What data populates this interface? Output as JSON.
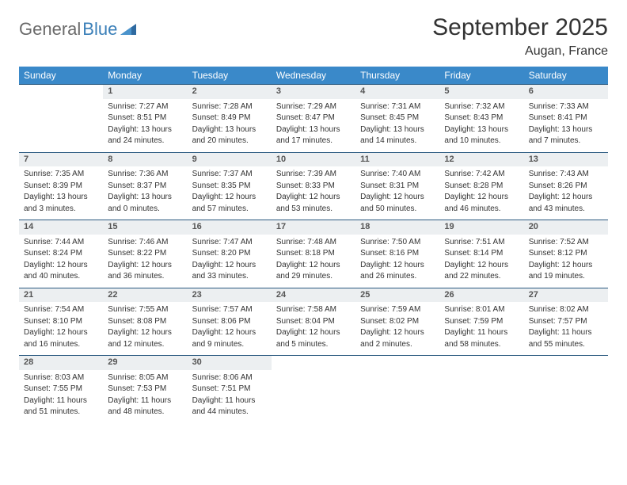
{
  "logo": {
    "part1": "General",
    "part2": "Blue"
  },
  "title": "September 2025",
  "location": "Augan, France",
  "colors": {
    "header_bg": "#3a89c9",
    "header_text": "#ffffff",
    "daynum_bg": "#eceff1",
    "row_border": "#2b5a80",
    "text": "#333333",
    "logo_gray": "#6a6a6a",
    "logo_blue": "#3a7fb8"
  },
  "day_headers": [
    "Sunday",
    "Monday",
    "Tuesday",
    "Wednesday",
    "Thursday",
    "Friday",
    "Saturday"
  ],
  "weeks": [
    [
      null,
      {
        "n": "1",
        "sunrise": "Sunrise: 7:27 AM",
        "sunset": "Sunset: 8:51 PM",
        "d1": "Daylight: 13 hours",
        "d2": "and 24 minutes."
      },
      {
        "n": "2",
        "sunrise": "Sunrise: 7:28 AM",
        "sunset": "Sunset: 8:49 PM",
        "d1": "Daylight: 13 hours",
        "d2": "and 20 minutes."
      },
      {
        "n": "3",
        "sunrise": "Sunrise: 7:29 AM",
        "sunset": "Sunset: 8:47 PM",
        "d1": "Daylight: 13 hours",
        "d2": "and 17 minutes."
      },
      {
        "n": "4",
        "sunrise": "Sunrise: 7:31 AM",
        "sunset": "Sunset: 8:45 PM",
        "d1": "Daylight: 13 hours",
        "d2": "and 14 minutes."
      },
      {
        "n": "5",
        "sunrise": "Sunrise: 7:32 AM",
        "sunset": "Sunset: 8:43 PM",
        "d1": "Daylight: 13 hours",
        "d2": "and 10 minutes."
      },
      {
        "n": "6",
        "sunrise": "Sunrise: 7:33 AM",
        "sunset": "Sunset: 8:41 PM",
        "d1": "Daylight: 13 hours",
        "d2": "and 7 minutes."
      }
    ],
    [
      {
        "n": "7",
        "sunrise": "Sunrise: 7:35 AM",
        "sunset": "Sunset: 8:39 PM",
        "d1": "Daylight: 13 hours",
        "d2": "and 3 minutes."
      },
      {
        "n": "8",
        "sunrise": "Sunrise: 7:36 AM",
        "sunset": "Sunset: 8:37 PM",
        "d1": "Daylight: 13 hours",
        "d2": "and 0 minutes."
      },
      {
        "n": "9",
        "sunrise": "Sunrise: 7:37 AM",
        "sunset": "Sunset: 8:35 PM",
        "d1": "Daylight: 12 hours",
        "d2": "and 57 minutes."
      },
      {
        "n": "10",
        "sunrise": "Sunrise: 7:39 AM",
        "sunset": "Sunset: 8:33 PM",
        "d1": "Daylight: 12 hours",
        "d2": "and 53 minutes."
      },
      {
        "n": "11",
        "sunrise": "Sunrise: 7:40 AM",
        "sunset": "Sunset: 8:31 PM",
        "d1": "Daylight: 12 hours",
        "d2": "and 50 minutes."
      },
      {
        "n": "12",
        "sunrise": "Sunrise: 7:42 AM",
        "sunset": "Sunset: 8:28 PM",
        "d1": "Daylight: 12 hours",
        "d2": "and 46 minutes."
      },
      {
        "n": "13",
        "sunrise": "Sunrise: 7:43 AM",
        "sunset": "Sunset: 8:26 PM",
        "d1": "Daylight: 12 hours",
        "d2": "and 43 minutes."
      }
    ],
    [
      {
        "n": "14",
        "sunrise": "Sunrise: 7:44 AM",
        "sunset": "Sunset: 8:24 PM",
        "d1": "Daylight: 12 hours",
        "d2": "and 40 minutes."
      },
      {
        "n": "15",
        "sunrise": "Sunrise: 7:46 AM",
        "sunset": "Sunset: 8:22 PM",
        "d1": "Daylight: 12 hours",
        "d2": "and 36 minutes."
      },
      {
        "n": "16",
        "sunrise": "Sunrise: 7:47 AM",
        "sunset": "Sunset: 8:20 PM",
        "d1": "Daylight: 12 hours",
        "d2": "and 33 minutes."
      },
      {
        "n": "17",
        "sunrise": "Sunrise: 7:48 AM",
        "sunset": "Sunset: 8:18 PM",
        "d1": "Daylight: 12 hours",
        "d2": "and 29 minutes."
      },
      {
        "n": "18",
        "sunrise": "Sunrise: 7:50 AM",
        "sunset": "Sunset: 8:16 PM",
        "d1": "Daylight: 12 hours",
        "d2": "and 26 minutes."
      },
      {
        "n": "19",
        "sunrise": "Sunrise: 7:51 AM",
        "sunset": "Sunset: 8:14 PM",
        "d1": "Daylight: 12 hours",
        "d2": "and 22 minutes."
      },
      {
        "n": "20",
        "sunrise": "Sunrise: 7:52 AM",
        "sunset": "Sunset: 8:12 PM",
        "d1": "Daylight: 12 hours",
        "d2": "and 19 minutes."
      }
    ],
    [
      {
        "n": "21",
        "sunrise": "Sunrise: 7:54 AM",
        "sunset": "Sunset: 8:10 PM",
        "d1": "Daylight: 12 hours",
        "d2": "and 16 minutes."
      },
      {
        "n": "22",
        "sunrise": "Sunrise: 7:55 AM",
        "sunset": "Sunset: 8:08 PM",
        "d1": "Daylight: 12 hours",
        "d2": "and 12 minutes."
      },
      {
        "n": "23",
        "sunrise": "Sunrise: 7:57 AM",
        "sunset": "Sunset: 8:06 PM",
        "d1": "Daylight: 12 hours",
        "d2": "and 9 minutes."
      },
      {
        "n": "24",
        "sunrise": "Sunrise: 7:58 AM",
        "sunset": "Sunset: 8:04 PM",
        "d1": "Daylight: 12 hours",
        "d2": "and 5 minutes."
      },
      {
        "n": "25",
        "sunrise": "Sunrise: 7:59 AM",
        "sunset": "Sunset: 8:02 PM",
        "d1": "Daylight: 12 hours",
        "d2": "and 2 minutes."
      },
      {
        "n": "26",
        "sunrise": "Sunrise: 8:01 AM",
        "sunset": "Sunset: 7:59 PM",
        "d1": "Daylight: 11 hours",
        "d2": "and 58 minutes."
      },
      {
        "n": "27",
        "sunrise": "Sunrise: 8:02 AM",
        "sunset": "Sunset: 7:57 PM",
        "d1": "Daylight: 11 hours",
        "d2": "and 55 minutes."
      }
    ],
    [
      {
        "n": "28",
        "sunrise": "Sunrise: 8:03 AM",
        "sunset": "Sunset: 7:55 PM",
        "d1": "Daylight: 11 hours",
        "d2": "and 51 minutes."
      },
      {
        "n": "29",
        "sunrise": "Sunrise: 8:05 AM",
        "sunset": "Sunset: 7:53 PM",
        "d1": "Daylight: 11 hours",
        "d2": "and 48 minutes."
      },
      {
        "n": "30",
        "sunrise": "Sunrise: 8:06 AM",
        "sunset": "Sunset: 7:51 PM",
        "d1": "Daylight: 11 hours",
        "d2": "and 44 minutes."
      },
      null,
      null,
      null,
      null
    ]
  ]
}
